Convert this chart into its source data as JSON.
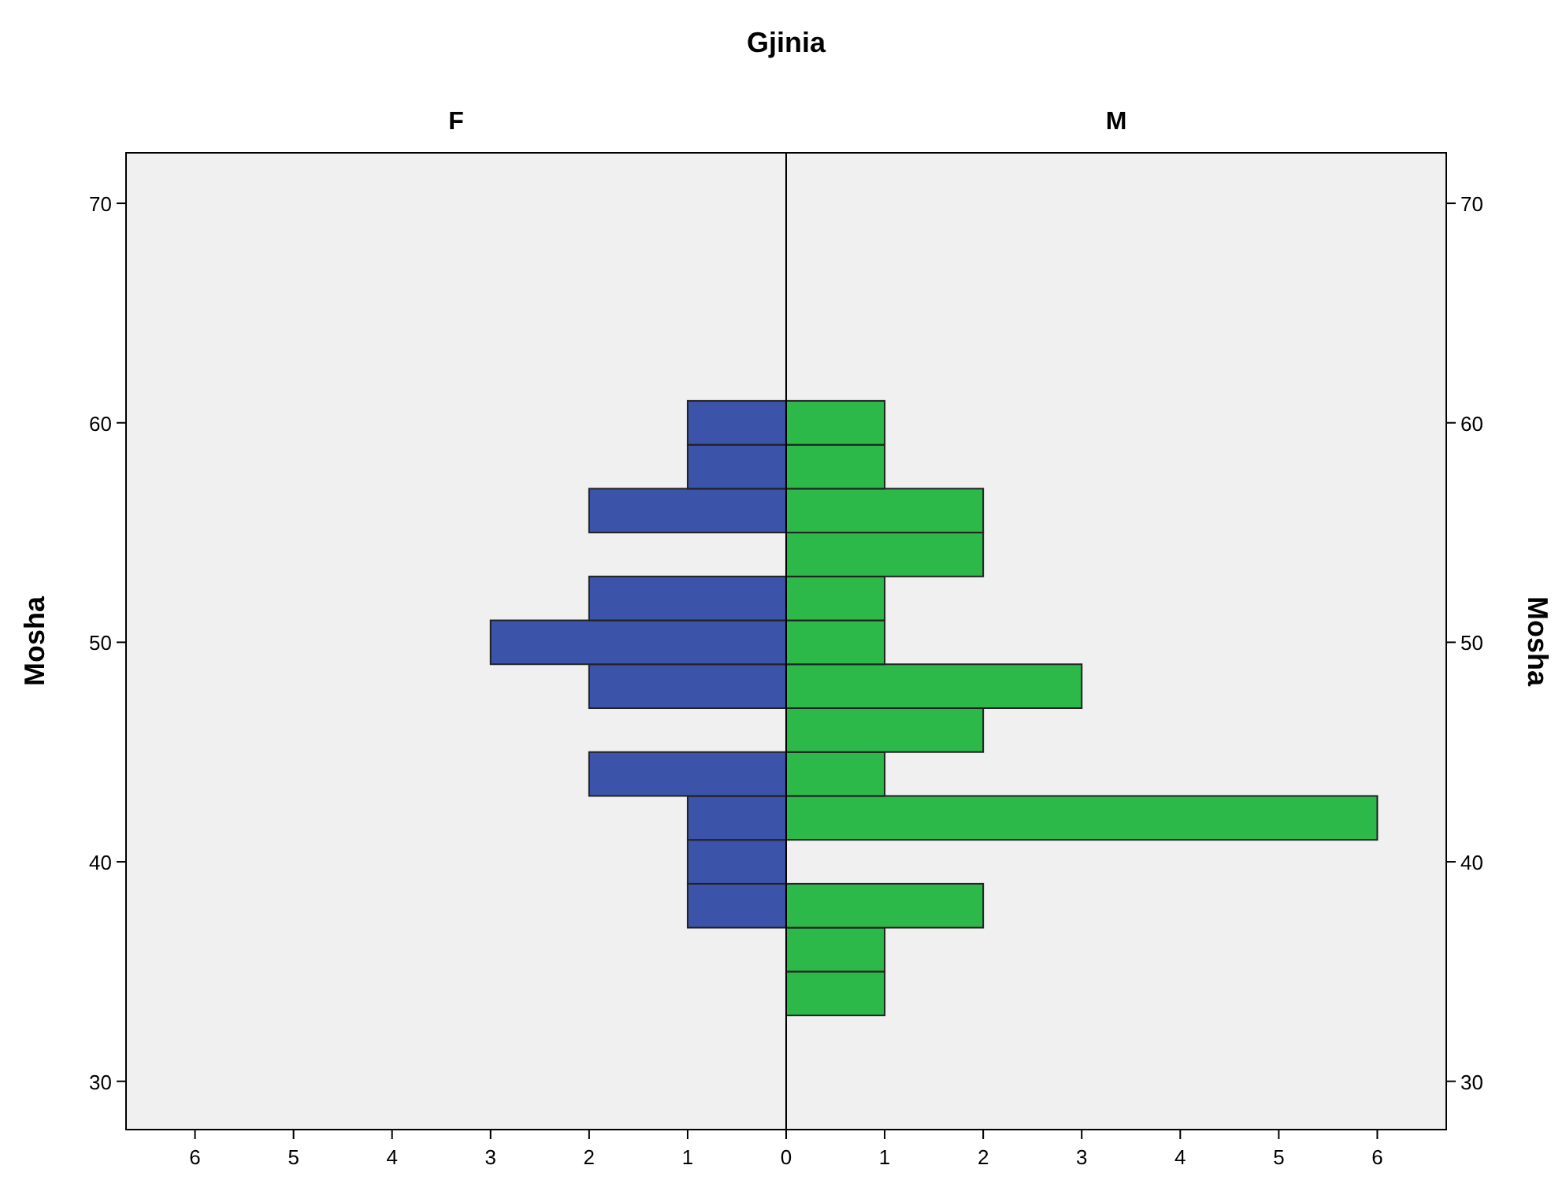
{
  "chart_data": [
    {
      "type": "histogram",
      "title": "Gjinia",
      "subtitle": "F",
      "ylabel": "Mosha",
      "orientation": "horizontal",
      "color": "#3b54a9",
      "bins": [
        33,
        35,
        37,
        39,
        41,
        43,
        45,
        47,
        49,
        51,
        53,
        55,
        57,
        59,
        61
      ],
      "values": [
        0,
        0,
        1,
        1,
        1,
        2,
        0,
        2,
        3,
        2,
        0,
        2,
        1,
        1
      ],
      "xlim": [
        6.7,
        0
      ],
      "xticks": [
        6,
        5,
        4,
        3,
        2,
        1,
        0
      ],
      "ylim": [
        27.8,
        72.3
      ],
      "yticks": [
        30,
        40,
        50,
        60,
        70
      ],
      "grid": false
    },
    {
      "type": "histogram",
      "subtitle": "M",
      "ylabel": "Mosha",
      "orientation": "horizontal",
      "color": "#2db84a",
      "bins": [
        33,
        35,
        37,
        39,
        41,
        43,
        45,
        47,
        49,
        51,
        53,
        55,
        57,
        59,
        61
      ],
      "values": [
        1,
        1,
        2,
        0,
        6,
        1,
        2,
        3,
        1,
        1,
        2,
        2,
        1,
        1
      ],
      "xlim": [
        0,
        6.7
      ],
      "xticks": [
        1,
        2,
        3,
        4,
        5,
        6
      ],
      "ylim": [
        27.8,
        72.3
      ],
      "yticks": [
        30,
        40,
        50,
        60,
        70
      ],
      "grid": false
    }
  ]
}
